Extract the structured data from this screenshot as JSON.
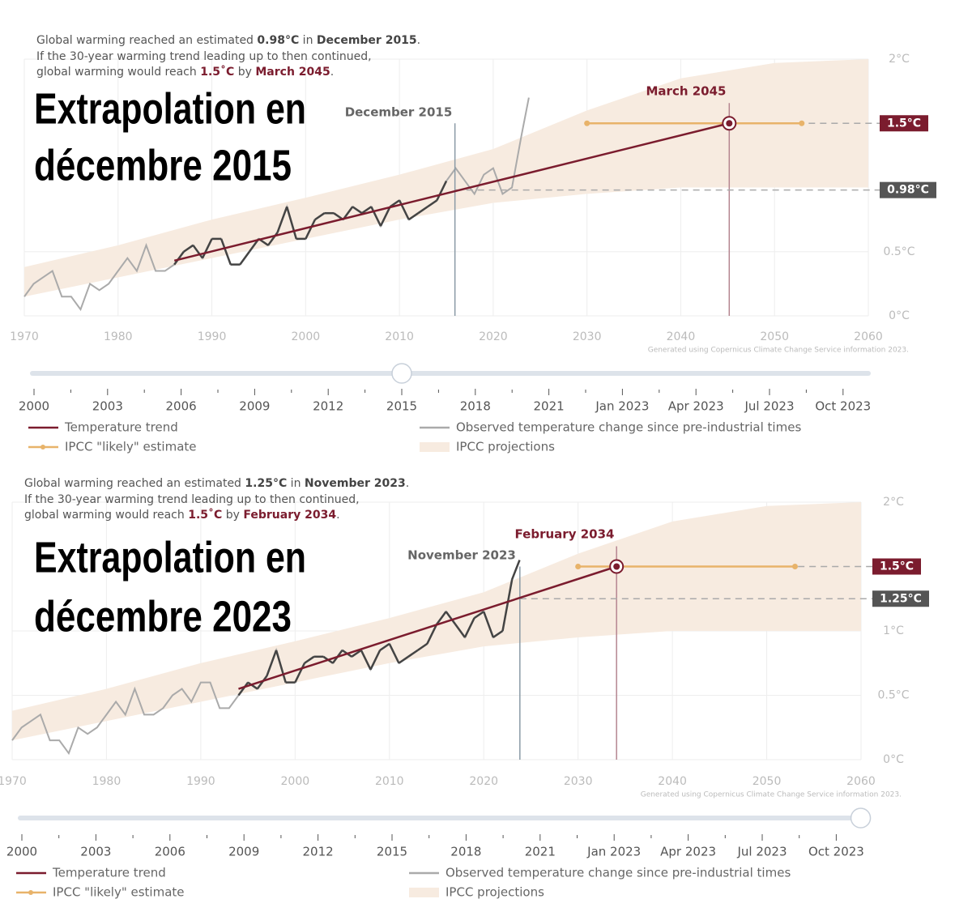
{
  "chart_data": [
    {
      "type": "line",
      "title_lines": [
        "Extrapolation en",
        "décembre 2015"
      ],
      "caption": [
        [
          "Global warming reached an estimated ",
          "0.98°C",
          " in ",
          "December 2015",
          "."
        ],
        [
          "If the 30-year warming trend leading up to then continued,"
        ],
        [
          "global warming would reach ",
          "1.5˚C",
          " by ",
          "March 2045",
          "."
        ]
      ],
      "xlim": [
        1970,
        2060
      ],
      "xticks": [
        1970,
        1980,
        1990,
        2000,
        2010,
        2020,
        2030,
        2040,
        2050,
        2060
      ],
      "ylim": [
        0,
        2
      ],
      "yticks": [
        {
          "value": 0,
          "label": "0°C"
        },
        {
          "value": 0.5,
          "label": "0.5°C"
        },
        {
          "value": 2,
          "label": "2°C"
        }
      ],
      "grid": true,
      "credit": "Generated using Copernicus Climate Change Service information 2023.",
      "cursor": {
        "x": 2015.92,
        "label": "December 2015"
      },
      "target": {
        "x": 2045.17,
        "label": "March 2045"
      },
      "threshold": {
        "value": 1.5,
        "label": "1.5°C"
      },
      "current": {
        "value": 0.98,
        "label": "0.98°C"
      },
      "series": [
        {
          "name": "Temperature trend",
          "color": "#7b1c2e",
          "x": [
            1986,
            2045.17
          ],
          "values": [
            0.43,
            1.5
          ]
        },
        {
          "name": "Observed temperature change since pre-industrial times",
          "color": "#aaaaaa",
          "x": [
            1970,
            1971,
            1972,
            1973,
            1974,
            1975,
            1976,
            1977,
            1978,
            1979,
            1980,
            1981,
            1982,
            1983,
            1984,
            1985,
            1986,
            1987,
            1988,
            1989,
            1990,
            1991,
            1992,
            1993,
            1994,
            1995,
            1996,
            1997,
            1998,
            1999,
            2000,
            2001,
            2002,
            2003,
            2004,
            2005,
            2006,
            2007,
            2008,
            2009,
            2010,
            2011,
            2012,
            2013,
            2014,
            2015,
            2016,
            2017,
            2018,
            2019,
            2020,
            2021,
            2022,
            2023,
            2023.8
          ],
          "values": [
            0.15,
            0.25,
            0.3,
            0.35,
            0.15,
            0.15,
            0.05,
            0.25,
            0.2,
            0.25,
            0.35,
            0.45,
            0.35,
            0.55,
            0.35,
            0.35,
            0.4,
            0.5,
            0.55,
            0.45,
            0.6,
            0.6,
            0.4,
            0.4,
            0.5,
            0.6,
            0.55,
            0.65,
            0.85,
            0.6,
            0.6,
            0.75,
            0.8,
            0.8,
            0.75,
            0.85,
            0.8,
            0.85,
            0.7,
            0.85,
            0.9,
            0.75,
            0.8,
            0.85,
            0.9,
            1.05,
            1.15,
            1.05,
            0.95,
            1.1,
            1.15,
            0.95,
            1.0,
            1.4,
            1.7
          ]
        },
        {
          "name": "IPCC \"likely\" estimate",
          "color": "#e8b36a",
          "x": [
            2030,
            2052.9
          ],
          "values": [
            1.5,
            1.5
          ]
        },
        {
          "name": "IPCC projections",
          "color": "#f7ebe0",
          "x": [
            1970,
            1980,
            1990,
            2000,
            2010,
            2020,
            2030,
            2040,
            2050,
            2060
          ],
          "lower": [
            0.15,
            0.3,
            0.45,
            0.6,
            0.75,
            0.88,
            0.95,
            1.0,
            1.0,
            1.0
          ],
          "upper": [
            0.38,
            0.55,
            0.75,
            0.92,
            1.1,
            1.3,
            1.6,
            1.85,
            1.97,
            2.0
          ]
        }
      ],
      "slider": {
        "labels": [
          "2000",
          "2003",
          "2006",
          "2009",
          "2012",
          "2015",
          "2018",
          "2021",
          "Jan 2023",
          "Apr 2023",
          "Jul 2023",
          "Oct 2023"
        ],
        "handle": 5
      }
    },
    {
      "type": "line",
      "title_lines": [
        "Extrapolation en",
        "décembre 2023"
      ],
      "caption": [
        [
          "Global warming reached an estimated ",
          "1.25°C",
          " in ",
          "November 2023",
          "."
        ],
        [
          "If the 30-year warming trend leading up to then continued,"
        ],
        [
          "global warming would reach ",
          "1.5˚C",
          " by ",
          "February 2034",
          "."
        ]
      ],
      "xlim": [
        1970,
        2060
      ],
      "xticks": [
        1970,
        1980,
        1990,
        2000,
        2010,
        2020,
        2030,
        2040,
        2050,
        2060
      ],
      "ylim": [
        0,
        2
      ],
      "yticks": [
        {
          "value": 0,
          "label": "0°C"
        },
        {
          "value": 0.5,
          "label": "0.5°C"
        },
        {
          "value": 1,
          "label": "1°C"
        },
        {
          "value": 2,
          "label": "2°C"
        }
      ],
      "grid": true,
      "credit": "Generated using Copernicus Climate Change Service information 2023.",
      "cursor": {
        "x": 2023.83,
        "label": "November 2023"
      },
      "target": {
        "x": 2034.08,
        "label": "February 2034"
      },
      "threshold": {
        "value": 1.5,
        "label": "1.5°C"
      },
      "current": {
        "value": 1.25,
        "label": "1.25°C"
      },
      "series": [
        {
          "name": "Temperature trend",
          "color": "#7b1c2e",
          "x": [
            1994,
            2034.08
          ],
          "values": [
            0.55,
            1.5
          ]
        },
        {
          "name": "Observed temperature change since pre-industrial times",
          "color": "#aaaaaa",
          "x": [
            1970,
            1971,
            1972,
            1973,
            1974,
            1975,
            1976,
            1977,
            1978,
            1979,
            1980,
            1981,
            1982,
            1983,
            1984,
            1985,
            1986,
            1987,
            1988,
            1989,
            1990,
            1991,
            1992,
            1993,
            1994,
            1995,
            1996,
            1997,
            1998,
            1999,
            2000,
            2001,
            2002,
            2003,
            2004,
            2005,
            2006,
            2007,
            2008,
            2009,
            2010,
            2011,
            2012,
            2013,
            2014,
            2015,
            2016,
            2017,
            2018,
            2019,
            2020,
            2021,
            2022,
            2023,
            2023.8
          ],
          "values": [
            0.15,
            0.25,
            0.3,
            0.35,
            0.15,
            0.15,
            0.05,
            0.25,
            0.2,
            0.25,
            0.35,
            0.45,
            0.35,
            0.55,
            0.35,
            0.35,
            0.4,
            0.5,
            0.55,
            0.45,
            0.6,
            0.6,
            0.4,
            0.4,
            0.5,
            0.6,
            0.55,
            0.65,
            0.85,
            0.6,
            0.6,
            0.75,
            0.8,
            0.8,
            0.75,
            0.85,
            0.8,
            0.85,
            0.7,
            0.85,
            0.9,
            0.75,
            0.8,
            0.85,
            0.9,
            1.05,
            1.15,
            1.05,
            0.95,
            1.1,
            1.15,
            0.95,
            1.0,
            1.4,
            1.55
          ]
        },
        {
          "name": "IPCC \"likely\" estimate",
          "color": "#e8b36a",
          "x": [
            2030,
            2053
          ],
          "values": [
            1.5,
            1.5
          ]
        },
        {
          "name": "IPCC projections",
          "color": "#f7ebe0",
          "x": [
            1970,
            1980,
            1990,
            2000,
            2010,
            2020,
            2030,
            2040,
            2050,
            2060
          ],
          "lower": [
            0.15,
            0.3,
            0.45,
            0.6,
            0.75,
            0.88,
            0.95,
            1.0,
            1.0,
            1.0
          ],
          "upper": [
            0.38,
            0.55,
            0.75,
            0.92,
            1.1,
            1.3,
            1.6,
            1.85,
            1.97,
            2.0
          ]
        }
      ],
      "slider": {
        "labels": [
          "2000",
          "2003",
          "2006",
          "2009",
          "2012",
          "2015",
          "2018",
          "2021",
          "Jan 2023",
          "Apr 2023",
          "Jul 2023",
          "Oct 2023"
        ],
        "handle": 11.33
      }
    }
  ]
}
